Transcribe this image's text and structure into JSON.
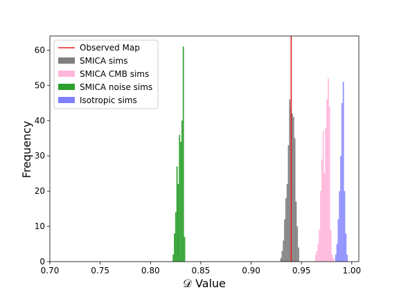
{
  "chart_data": {
    "type": "histogram",
    "xlabel": "𝒟 Value",
    "ylabel": "Frequency",
    "xlim": [
      0.7,
      1.007
    ],
    "ylim": [
      0,
      64
    ],
    "xticks": [
      0.7,
      0.75,
      0.8,
      0.85,
      0.9,
      0.95,
      1.0
    ],
    "xtick_labels": [
      "0.70",
      "0.75",
      "0.80",
      "0.85",
      "0.90",
      "0.95",
      "1.00"
    ],
    "yticks": [
      0,
      10,
      20,
      30,
      40,
      50,
      60
    ],
    "ytick_labels": [
      "0",
      "10",
      "20",
      "30",
      "40",
      "50",
      "60"
    ],
    "grid": false,
    "legend_position": "top-left",
    "observed": {
      "name": "Observed Map",
      "x": 0.9398,
      "color": "#e41a1c"
    },
    "series": [
      {
        "name": "SMICA sims",
        "color": "#7f7f7f",
        "bin_start": 0.929,
        "bin_width": 0.00125,
        "counts": [
          1,
          3,
          6,
          12,
          18,
          22,
          33,
          46,
          44,
          42,
          41,
          35,
          17,
          10,
          4
        ]
      },
      {
        "name": "SMICA CMB sims",
        "color": "#ffb6db",
        "bin_start": 0.9635,
        "bin_width": 0.00125,
        "counts": [
          2,
          3,
          5,
          9,
          20,
          29,
          37,
          25,
          38,
          46,
          52,
          44,
          9,
          2,
          1
        ]
      },
      {
        "name": "SMICA noise sims",
        "color": "#2ca02c",
        "bin_start": 0.822,
        "bin_width": 0.00125,
        "counts": [
          2,
          8,
          14,
          27,
          22,
          36,
          34,
          40,
          61,
          7
        ]
      },
      {
        "name": "Isotropic sims",
        "color": "#8080ff",
        "bin_start": 0.9835,
        "bin_width": 0.00125,
        "counts": [
          2,
          5,
          12,
          20,
          30,
          45,
          51,
          20,
          8,
          2
        ]
      }
    ]
  }
}
